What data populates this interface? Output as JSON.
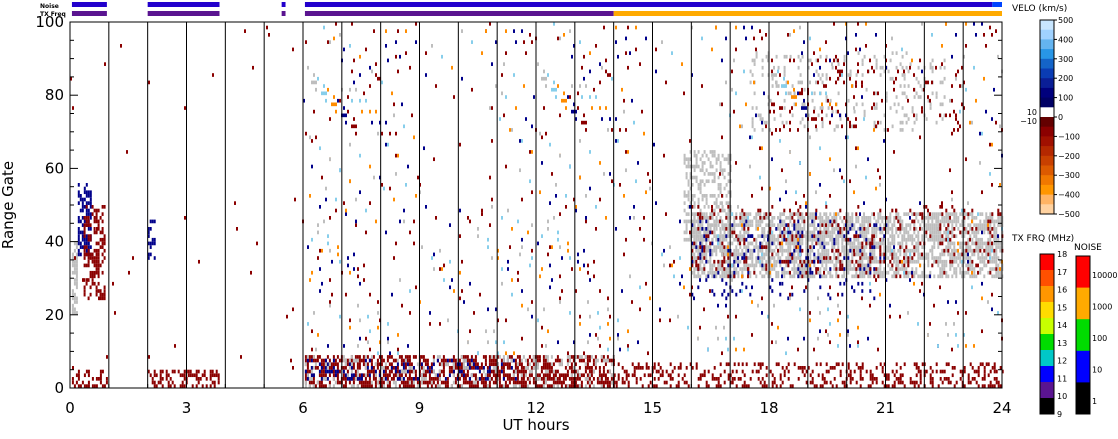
{
  "chart_data": {
    "type": "heatmap",
    "xlabel": "UT hours",
    "ylabel": "Range Gate",
    "xlim": [
      0,
      24
    ],
    "ylim": [
      0,
      100
    ],
    "x_ticks": [
      0,
      3,
      6,
      9,
      12,
      15,
      18,
      21,
      24
    ],
    "y_ticks": [
      0,
      20,
      40,
      60,
      80,
      100
    ],
    "hour_lines": [
      1,
      2,
      3,
      4,
      5,
      6,
      7,
      8,
      9,
      10,
      11,
      12,
      13,
      14,
      15,
      16,
      17,
      18,
      19,
      20,
      21,
      22,
      23
    ],
    "status_strips": {
      "noise": {
        "label": "Noise",
        "segments": [
          {
            "start": 0.05,
            "end": 0.95,
            "color": "#2200cc"
          },
          {
            "start": 2.0,
            "end": 3.85,
            "color": "#2200cc"
          },
          {
            "start": 5.45,
            "end": 5.55,
            "color": "#2200cc"
          },
          {
            "start": 6.05,
            "end": 23.75,
            "color": "#2200cc"
          },
          {
            "start": 23.75,
            "end": 24.0,
            "color": "#0044ff"
          }
        ]
      },
      "tx_freq": {
        "label": "TX Freq",
        "segments": [
          {
            "start": 0.05,
            "end": 0.95,
            "color": "#5a1490"
          },
          {
            "start": 2.0,
            "end": 3.85,
            "color": "#5a1490"
          },
          {
            "start": 5.45,
            "end": 5.55,
            "color": "#5a1490"
          },
          {
            "start": 6.05,
            "end": 14.0,
            "color": "#5a1490"
          },
          {
            "start": 14.0,
            "end": 24.0,
            "color": "#ffaa00"
          }
        ]
      }
    },
    "scatter_regions": [
      {
        "t0": 0.05,
        "t1": 0.2,
        "g0": 20,
        "g1": 40,
        "color": "#bebebe",
        "density": 0.7
      },
      {
        "t0": 0.2,
        "t1": 0.55,
        "g0": 36,
        "g1": 56,
        "color": "#00008b",
        "density": 0.55
      },
      {
        "t0": 0.35,
        "t1": 0.9,
        "g0": 24,
        "g1": 50,
        "color": "#8b0000",
        "density": 0.45
      },
      {
        "t0": 0.05,
        "t1": 0.95,
        "g0": 0,
        "g1": 5,
        "color": "#8b0000",
        "density": 0.35
      },
      {
        "t0": 2.0,
        "t1": 2.2,
        "g0": 35,
        "g1": 46,
        "color": "#00008b",
        "density": 0.5
      },
      {
        "t0": 2.0,
        "t1": 3.85,
        "g0": 0,
        "g1": 5,
        "color": "#8b0000",
        "density": 0.45
      },
      {
        "t0": 6.05,
        "t1": 14.0,
        "g0": 0,
        "g1": 9,
        "color": "#8b0000",
        "density": 0.55
      },
      {
        "t0": 6.05,
        "t1": 11.5,
        "g0": 2,
        "g1": 8,
        "color": "#00008b",
        "density": 0.22
      },
      {
        "t0": 6.05,
        "t1": 14.0,
        "g0": 0,
        "g1": 9,
        "color": "#bebebe",
        "density": 0.15
      },
      {
        "t0": 14.0,
        "t1": 24.0,
        "g0": 0,
        "g1": 7,
        "color": "#8b0000",
        "density": 0.28
      },
      {
        "t0": 16.0,
        "t1": 24.0,
        "g0": 30,
        "g1": 48,
        "color": "#bebebe",
        "density": 0.62
      },
      {
        "t0": 15.8,
        "t1": 17.0,
        "g0": 40,
        "g1": 65,
        "color": "#bebebe",
        "density": 0.35
      },
      {
        "t0": 16.0,
        "t1": 21.0,
        "g0": 24,
        "g1": 46,
        "color": "#00008b",
        "density": 0.09
      },
      {
        "t0": 16.0,
        "t1": 24.0,
        "g0": 30,
        "g1": 50,
        "color": "#8b0000",
        "density": 0.08
      },
      {
        "t0": 17.5,
        "t1": 22.5,
        "g0": 70,
        "g1": 92,
        "color": "#bebebe",
        "density": 0.12
      },
      {
        "t0": 18.0,
        "t1": 23.0,
        "g0": 70,
        "g1": 90,
        "color": "#8b0000",
        "density": 0.05
      },
      {
        "t0": 6.0,
        "t1": 24.0,
        "g0": 9,
        "g1": 100,
        "color": "#8b0000",
        "density": 0.012
      },
      {
        "t0": 6.0,
        "t1": 24.0,
        "g0": 9,
        "g1": 100,
        "color": "#00008b",
        "density": 0.008
      },
      {
        "t0": 6.0,
        "t1": 24.0,
        "g0": 9,
        "g1": 100,
        "color": "#ff8c00",
        "density": 0.005
      },
      {
        "t0": 6.0,
        "t1": 24.0,
        "g0": 9,
        "g1": 100,
        "color": "#87ceeb",
        "density": 0.005
      },
      {
        "t0": 6.0,
        "t1": 24.0,
        "g0": 9,
        "g1": 100,
        "color": "#bebebe",
        "density": 0.006
      },
      {
        "t0": 0.0,
        "t1": 6.0,
        "g0": 5,
        "g1": 100,
        "color": "#8b0000",
        "density": 0.003
      }
    ],
    "colorbars": {
      "velocity": {
        "title": "VELO (km/s)",
        "ticks": [
          "500",
          "400",
          "300",
          "200",
          "100",
          "0",
          "−100",
          "−200",
          "−300",
          "−400",
          "−500"
        ],
        "inner_ticks": [
          "10",
          "−10"
        ],
        "colors_top_to_bottom": [
          "#c8e6ff",
          "#a0d2ff",
          "#64b4f0",
          "#2896e6",
          "#1464c8",
          "#0a3cb4",
          "#0a1e96",
          "#00007d",
          "#000064",
          "#ffffff",
          "#640000",
          "#8b0000",
          "#a01000",
          "#b42800",
          "#c84000",
          "#dc5a00",
          "#f07800",
          "#ff9600",
          "#ffb464",
          "#ffd2a0"
        ]
      },
      "tx_freq": {
        "title": "TX FRQ (MHz)",
        "ticks": [
          "18",
          "17",
          "16",
          "15",
          "14",
          "13",
          "12",
          "11",
          "10",
          "9"
        ],
        "colors_top_to_bottom": [
          "#ff0000",
          "#ff5000",
          "#ff9600",
          "#ffdc00",
          "#c8ff00",
          "#00dc00",
          "#00c8c8",
          "#0000ff",
          "#5a1490",
          "#000000"
        ]
      },
      "noise": {
        "title": "NOISE",
        "ticks": [
          "10000",
          "1000",
          "100",
          "10",
          "1"
        ],
        "colors_top_to_bottom": [
          "#ff0000",
          "#ffaa00",
          "#00dc00",
          "#0000ff",
          "#000000"
        ]
      }
    }
  }
}
